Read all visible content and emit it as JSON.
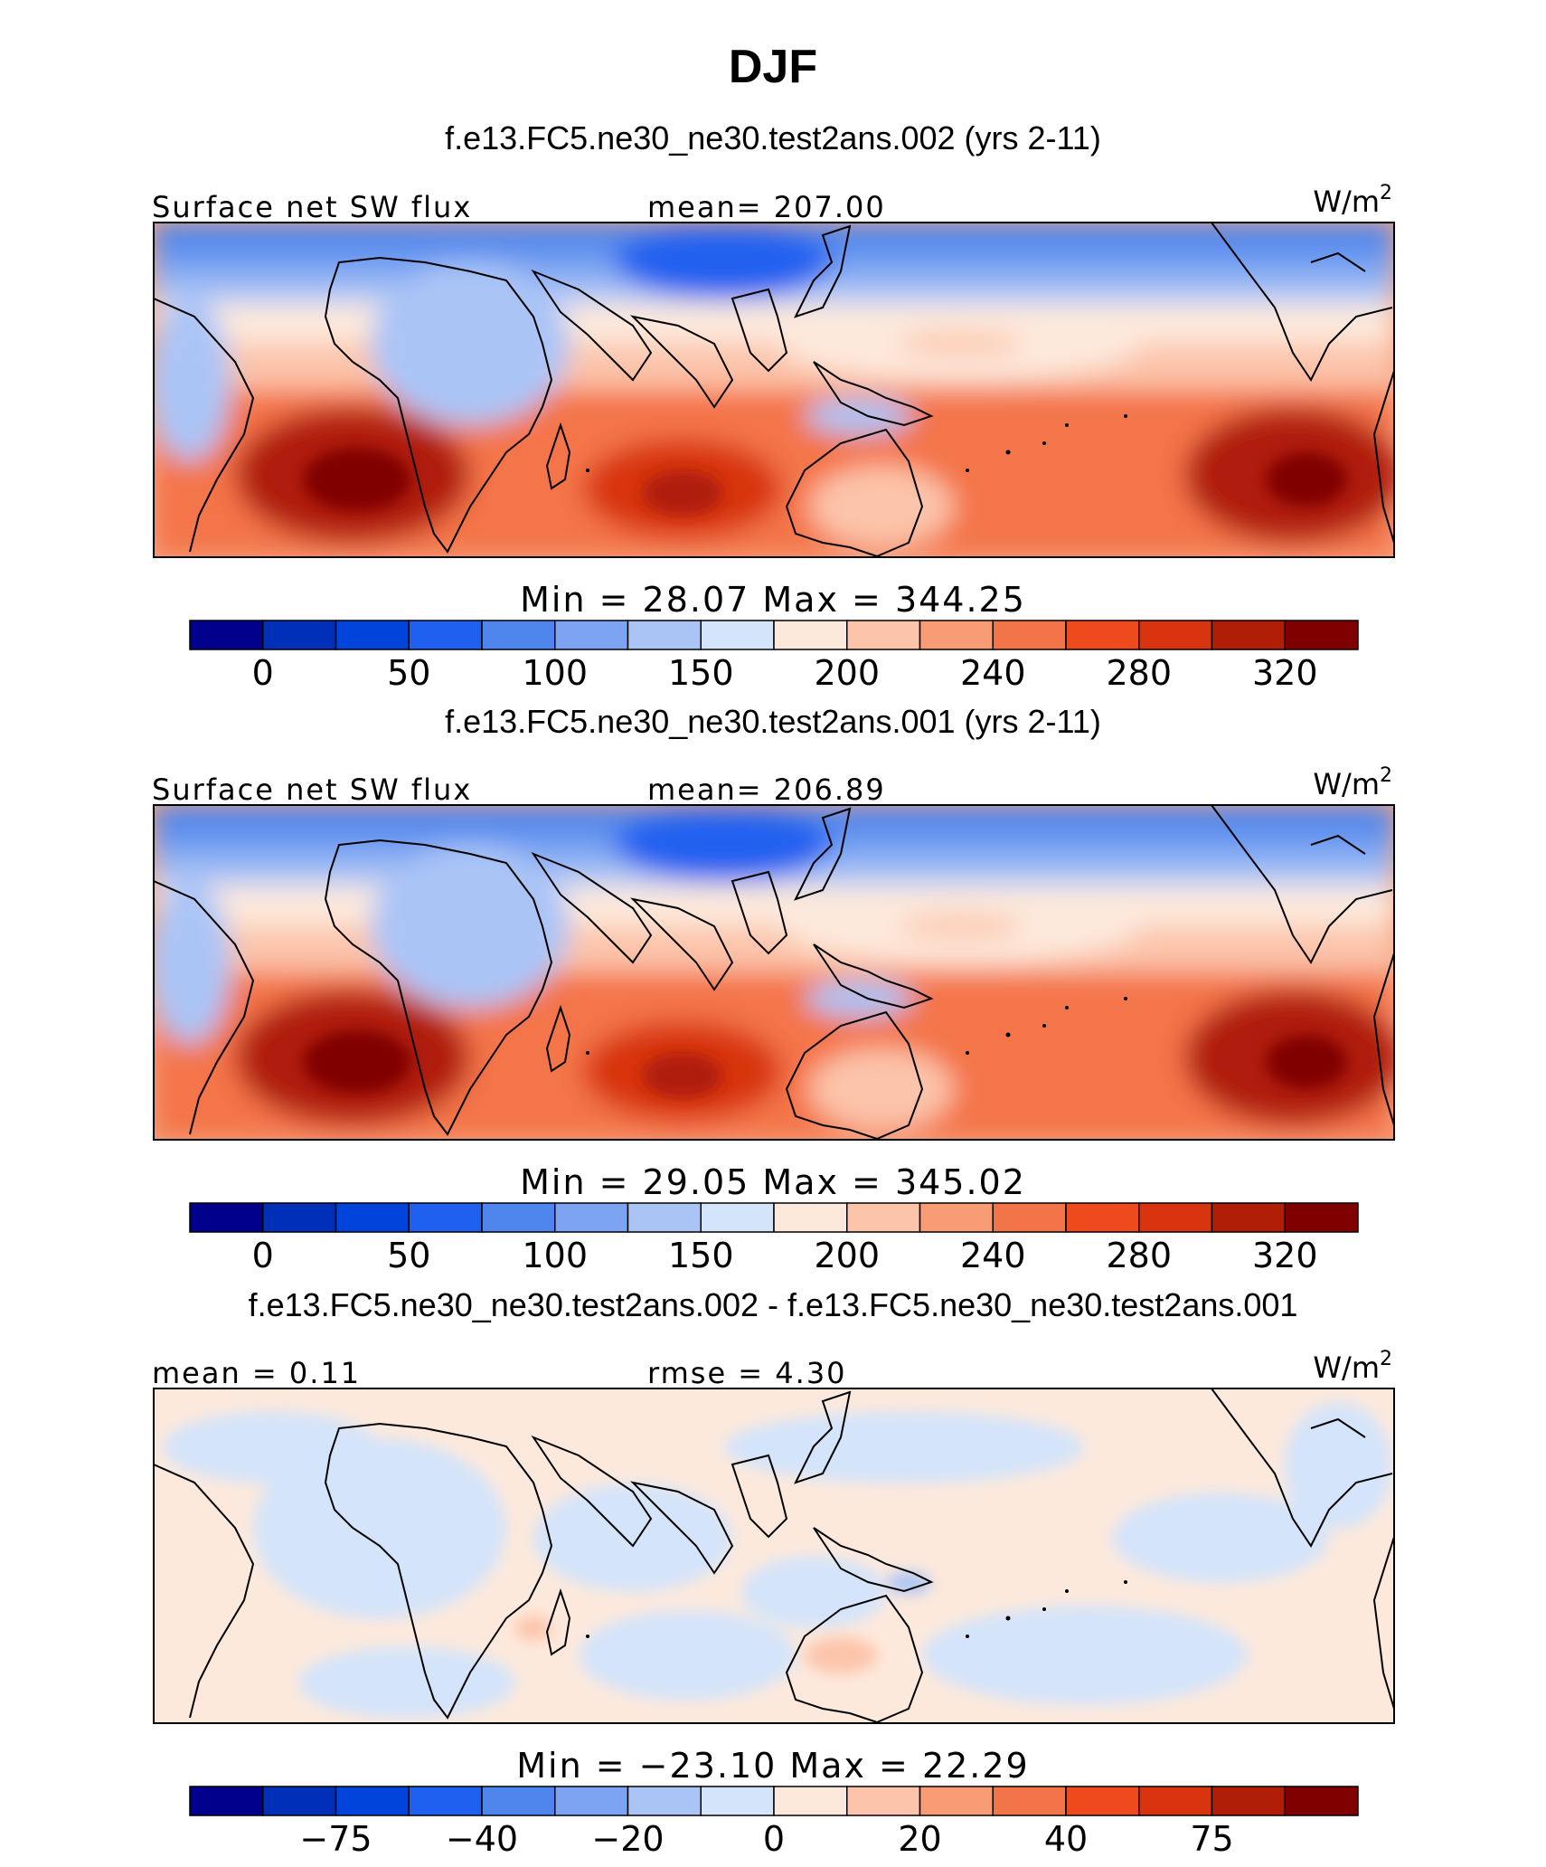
{
  "figure": {
    "title": "DJF"
  },
  "chart_data": [
    {
      "type": "heatmap",
      "title": "f.e13.FC5.ne30_ne30.test2ans.002 (yrs 2-11)",
      "left_label": "Surface net SW flux",
      "center_label": "mean= 207.00",
      "units": "W/m",
      "units_sup": "2",
      "min_max": "Min = 28.07 Max = 344.25",
      "colorbar": {
        "tick_labels": [
          "0",
          "50",
          "100",
          "150",
          "200",
          "240",
          "280",
          "320"
        ],
        "colors": [
          "#00008c",
          "#0030b8",
          "#0044dc",
          "#2060f0",
          "#4e86ee",
          "#7ca4f2",
          "#aac4f6",
          "#d4e4fa",
          "#fde9dc",
          "#fcc4aa",
          "#f89c76",
          "#f4744a",
          "#ee4a1e",
          "#d83410",
          "#b01e08",
          "#800000"
        ]
      }
    },
    {
      "type": "heatmap",
      "title": "f.e13.FC5.ne30_ne30.test2ans.001 (yrs 2-11)",
      "left_label": "Surface net SW flux",
      "center_label": "mean= 206.89",
      "units": "W/m",
      "units_sup": "2",
      "min_max": "Min = 29.05 Max = 345.02",
      "colorbar": {
        "tick_labels": [
          "0",
          "50",
          "100",
          "150",
          "200",
          "240",
          "280",
          "320"
        ],
        "colors": [
          "#00008c",
          "#0030b8",
          "#0044dc",
          "#2060f0",
          "#4e86ee",
          "#7ca4f2",
          "#aac4f6",
          "#d4e4fa",
          "#fde9dc",
          "#fcc4aa",
          "#f89c76",
          "#f4744a",
          "#ee4a1e",
          "#d83410",
          "#b01e08",
          "#800000"
        ]
      }
    },
    {
      "type": "heatmap",
      "title": "f.e13.FC5.ne30_ne30.test2ans.002 - f.e13.FC5.ne30_ne30.test2ans.001",
      "left_label": "mean = 0.11",
      "center_label": "rmse = 4.30",
      "units": "W/m",
      "units_sup": "2",
      "min_max": "Min = −23.10 Max = 22.29",
      "colorbar": {
        "tick_labels": [
          "−75",
          "−40",
          "−20",
          "0",
          "20",
          "40",
          "75"
        ],
        "colors": [
          "#00008c",
          "#0030b8",
          "#0044dc",
          "#2060f0",
          "#4e86ee",
          "#7ca4f2",
          "#aac4f6",
          "#d4e4fa",
          "#fde9dc",
          "#fcc4aa",
          "#f89c76",
          "#f4744a",
          "#ee4a1e",
          "#d83410",
          "#b01e08",
          "#800000"
        ]
      }
    }
  ]
}
